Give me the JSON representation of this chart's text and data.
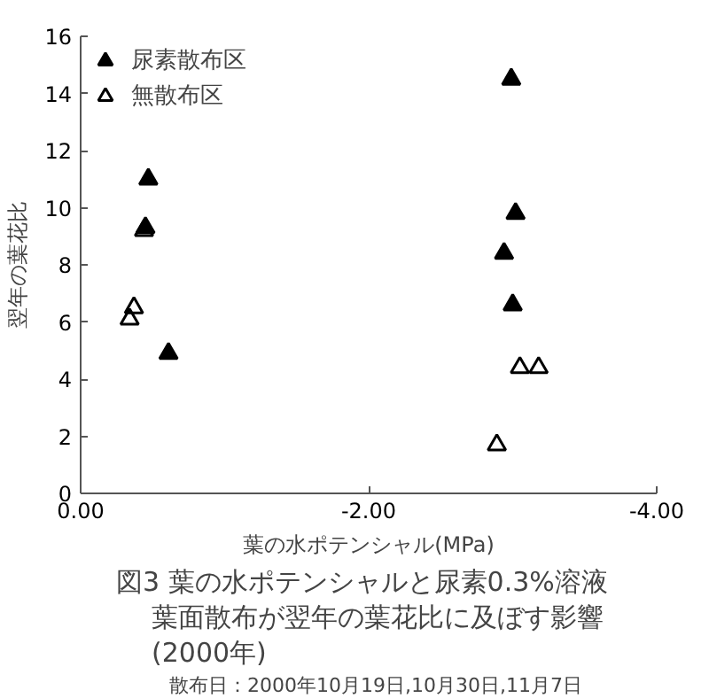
{
  "chart_data": {
    "type": "scatter",
    "title": "図3 葉の水ポテンシャルと尿素0.3%溶液葉面散布が翌年の葉花比に及ぼす影響",
    "subtitle": "(2000年)",
    "xlabel": "葉の水ポテンシャル(MPa)",
    "ylabel": "翌年の葉花比",
    "annotations": [
      "散布日：2000年10月19日,10月30日,11月7日"
    ],
    "xlim": [
      0,
      -4
    ],
    "xticks": [
      {
        "value": 0,
        "label": "0.00"
      },
      {
        "value": -2,
        "label": "-2.00"
      },
      {
        "value": -4,
        "label": "-4.00"
      }
    ],
    "ylim": [
      0,
      16
    ],
    "yticks": [
      0,
      2,
      4,
      6,
      8,
      10,
      12,
      14,
      16
    ],
    "grid": false,
    "legend": "top left",
    "marker": "triangle",
    "series": [
      {
        "name": "尿素散布区",
        "color": "#000000",
        "x": [
          -0.47,
          -0.45,
          -0.61,
          -2.99,
          -3.02,
          -2.94,
          -3.0
        ],
        "values": [
          11.0,
          9.3,
          4.9,
          14.5,
          9.8,
          8.4,
          6.6
        ]
      },
      {
        "name": "無散布区",
        "color": "#000000",
        "x": [
          -0.44,
          -0.37,
          -0.34,
          -3.05,
          -3.18,
          -2.89
        ],
        "values": [
          9.2,
          6.5,
          6.1,
          4.4,
          4.4,
          1.7
        ]
      }
    ]
  }
}
